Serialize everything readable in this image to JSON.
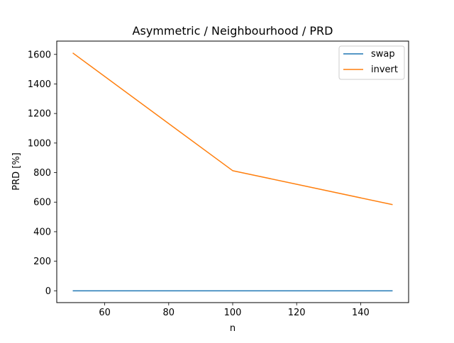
{
  "chart_data": {
    "type": "line",
    "title": "Asymmetric / Neighbourhood / PRD",
    "xlabel": "n",
    "ylabel": "PRD [%]",
    "x": [
      50,
      100,
      150
    ],
    "series": [
      {
        "name": "swap",
        "values": [
          0,
          0,
          0
        ],
        "color": "#1f77b4"
      },
      {
        "name": "invert",
        "values": [
          1610,
          813,
          583
        ],
        "color": "#ff7f0e"
      }
    ],
    "xlim": [
      45,
      155
    ],
    "ylim": [
      -80,
      1690
    ],
    "xticks": [
      "60",
      "80",
      "100",
      "120",
      "140"
    ],
    "yticks": [
      "0",
      "200",
      "400",
      "600",
      "800",
      "1000",
      "1200",
      "1400",
      "1600"
    ],
    "legend": "top-right",
    "grid": false
  }
}
